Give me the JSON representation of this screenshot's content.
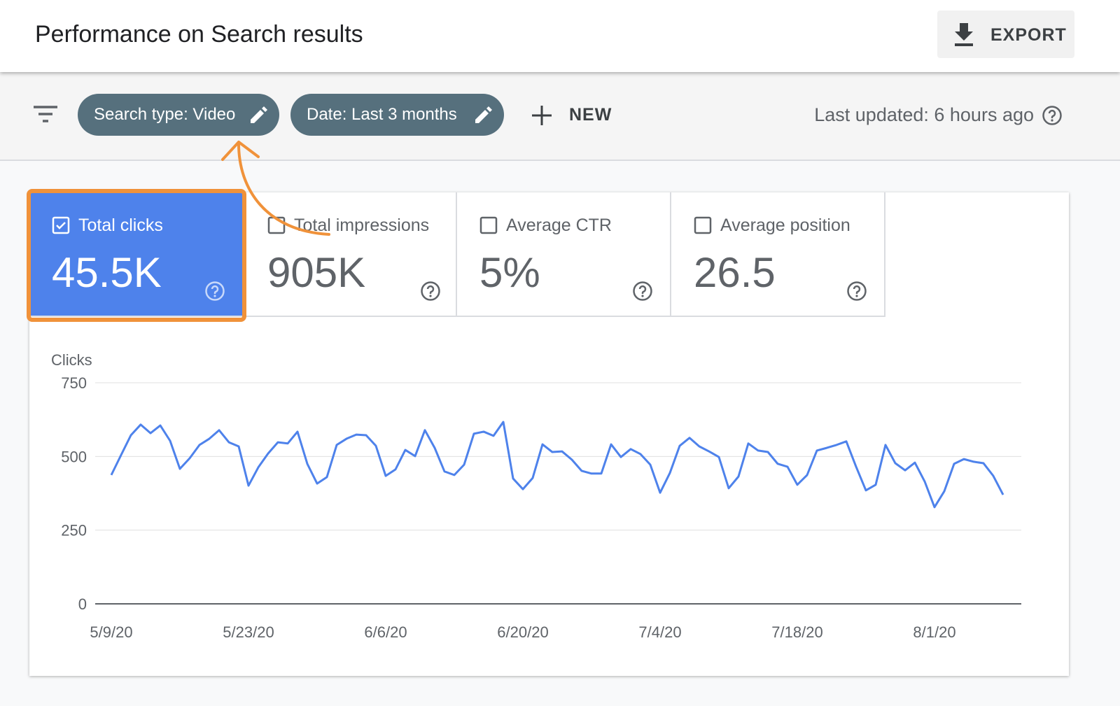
{
  "header": {
    "title": "Performance on Search results",
    "export": "EXPORT"
  },
  "filters": {
    "chips": [
      "Search type: Video",
      "Date: Last 3 months"
    ],
    "new": "NEW",
    "last_updated": "Last updated: 6 hours ago"
  },
  "metrics": [
    {
      "label": "Total clicks",
      "value": "45.5K",
      "selected": true
    },
    {
      "label": "Total impressions",
      "value": "905K",
      "selected": false
    },
    {
      "label": "Average CTR",
      "value": "5%",
      "selected": false
    },
    {
      "label": "Average position",
      "value": "26.5",
      "selected": false
    }
  ],
  "chart_data": {
    "type": "line",
    "y_label": "Clicks",
    "color": "#4e82eb",
    "x": [
      "5/9/20",
      null,
      null,
      null,
      null,
      null,
      null,
      null,
      null,
      null,
      null,
      null,
      null,
      null,
      "5/23/20",
      null,
      null,
      null,
      null,
      null,
      null,
      null,
      null,
      null,
      null,
      null,
      null,
      null,
      "6/6/20",
      null,
      null,
      null,
      null,
      null,
      null,
      null,
      null,
      null,
      null,
      null,
      null,
      null,
      "6/20/20",
      null,
      null,
      null,
      null,
      null,
      null,
      null,
      null,
      null,
      null,
      null,
      null,
      null,
      "7/4/20",
      null,
      null,
      null,
      null,
      null,
      null,
      null,
      null,
      null,
      null,
      null,
      null,
      null,
      "7/18/20",
      null,
      null,
      null,
      null,
      null,
      null,
      null,
      null,
      null,
      null,
      null,
      null,
      null,
      "8/1/20",
      null,
      null,
      null,
      null,
      null,
      null,
      null
    ],
    "values": [
      437,
      505,
      572,
      608,
      579,
      605,
      553,
      458,
      494,
      539,
      560,
      589,
      548,
      534,
      401,
      463,
      510,
      548,
      544,
      584,
      475,
      408,
      430,
      539,
      560,
      574,
      572,
      536,
      434,
      456,
      522,
      501,
      589,
      529,
      449,
      437,
      472,
      577,
      584,
      570,
      617,
      425,
      389,
      427,
      541,
      515,
      517,
      489,
      451,
      442,
      442,
      541,
      498,
      525,
      508,
      472,
      377,
      444,
      536,
      563,
      534,
      517,
      498,
      392,
      432,
      544,
      520,
      515,
      475,
      465,
      404,
      437,
      520,
      529,
      539,
      551,
      465,
      385,
      404,
      539,
      477,
      453,
      479,
      415,
      328,
      382,
      475,
      491,
      482,
      477,
      434,
      370
    ],
    "ylim": [
      0,
      750
    ],
    "yticks": [
      0,
      250,
      500,
      750
    ],
    "grid": true
  }
}
